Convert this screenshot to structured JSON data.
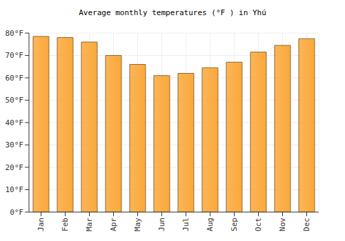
{
  "chart_data": {
    "type": "bar",
    "title": "Average monthly temperatures (°F ) in Yhú",
    "categories": [
      "Jan",
      "Feb",
      "Mar",
      "Apr",
      "May",
      "Jun",
      "Jul",
      "Aug",
      "Sep",
      "Oct",
      "Nov",
      "Dec"
    ],
    "values": [
      78.5,
      78,
      76,
      70,
      66,
      61,
      62,
      64.5,
      67,
      71.5,
      74.5,
      77.5
    ],
    "color": "#fba83a",
    "ylim": [
      0,
      80
    ],
    "yticks": [
      {
        "value": 0,
        "label": "0°F"
      },
      {
        "value": 10,
        "label": "10°F"
      },
      {
        "value": 20,
        "label": "20°F"
      },
      {
        "value": 30,
        "label": "30°F"
      },
      {
        "value": 40,
        "label": "40°F"
      },
      {
        "value": 50,
        "label": "50°F"
      },
      {
        "value": 60,
        "label": "60°F"
      },
      {
        "value": 70,
        "label": "70°F"
      },
      {
        "value": 80,
        "label": "80°F"
      }
    ],
    "grid": true
  }
}
